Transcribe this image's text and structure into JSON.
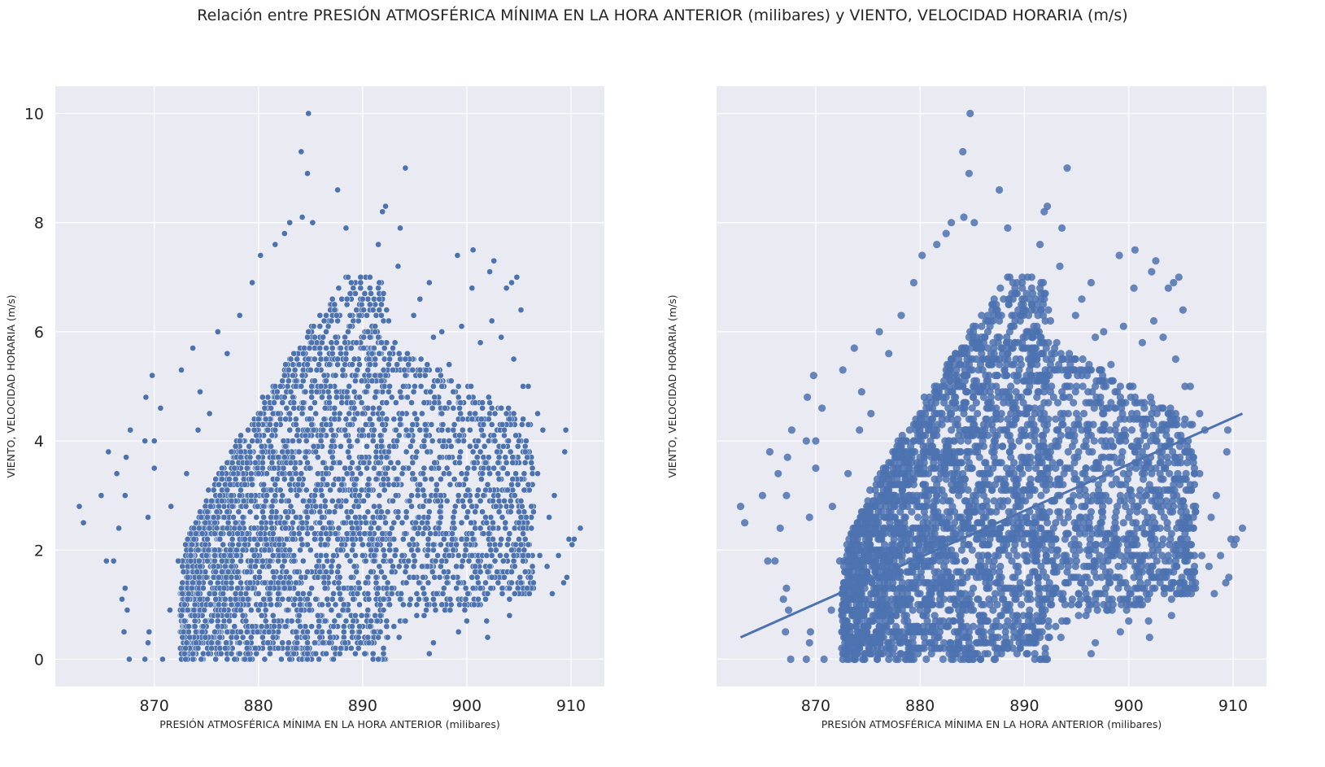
{
  "suptitle": "Relación entre PRESIÓN ATMOSFÉRICA MÍNIMA EN LA HORA ANTERIOR (milibares) y VIENTO, VELOCIDAD HORARIA (m/s)",
  "colors": {
    "axes_bg": "#eaeaf2",
    "grid": "#ffffff",
    "point": "#4c72b0",
    "line": "#4c72b0",
    "text": "#262626"
  },
  "chart_data": [
    {
      "type": "scatter",
      "xlabel": "PRESIÓN ATMOSFÉRICA MÍNIMA EN LA HORA ANTERIOR (milibares)",
      "ylabel": "VIENTO, VELOCIDAD HORARIA (m/s)",
      "xlim": [
        860.5,
        913.2
      ],
      "ylim": [
        -0.5,
        10.5
      ],
      "xticks": [
        870,
        880,
        890,
        900,
        910
      ],
      "yticks": [
        0,
        2,
        4,
        6,
        8,
        10
      ],
      "xtick_labels": [
        "870",
        "880",
        "890",
        "900",
        "910"
      ],
      "ytick_labels": [
        "0",
        "2",
        "4",
        "6",
        "8",
        "10"
      ],
      "grid": true,
      "points": [
        {
          "x": 884.8,
          "y": 10.0
        },
        {
          "x": 884.1,
          "y": 9.3
        },
        {
          "x": 884.7,
          "y": 8.9
        },
        {
          "x": 894.1,
          "y": 9.0
        },
        {
          "x": 887.6,
          "y": 8.6
        },
        {
          "x": 892.2,
          "y": 8.3
        },
        {
          "x": 891.9,
          "y": 8.2
        },
        {
          "x": 884.2,
          "y": 8.1
        },
        {
          "x": 883.0,
          "y": 8.0
        },
        {
          "x": 885.2,
          "y": 8.0
        },
        {
          "x": 893.6,
          "y": 7.9
        },
        {
          "x": 888.4,
          "y": 7.9
        },
        {
          "x": 882.5,
          "y": 7.8
        },
        {
          "x": 899.1,
          "y": 7.4
        },
        {
          "x": 900.6,
          "y": 7.5
        },
        {
          "x": 902.6,
          "y": 7.3
        },
        {
          "x": 902.2,
          "y": 7.1
        },
        {
          "x": 904.8,
          "y": 7.0
        },
        {
          "x": 904.3,
          "y": 6.9
        },
        {
          "x": 903.8,
          "y": 6.8
        },
        {
          "x": 900.5,
          "y": 6.8
        },
        {
          "x": 896.4,
          "y": 6.9
        },
        {
          "x": 895.5,
          "y": 6.6
        },
        {
          "x": 905.2,
          "y": 6.4
        },
        {
          "x": 902.4,
          "y": 6.2
        },
        {
          "x": 899.5,
          "y": 6.1
        },
        {
          "x": 897.6,
          "y": 6.0
        },
        {
          "x": 876.1,
          "y": 6.0
        },
        {
          "x": 873.7,
          "y": 5.7
        },
        {
          "x": 872.6,
          "y": 5.3
        },
        {
          "x": 869.8,
          "y": 5.2
        },
        {
          "x": 874.4,
          "y": 4.9
        },
        {
          "x": 869.2,
          "y": 4.8
        },
        {
          "x": 870.6,
          "y": 4.6
        },
        {
          "x": 867.7,
          "y": 4.2
        },
        {
          "x": 869.1,
          "y": 4.0
        },
        {
          "x": 870.0,
          "y": 4.0
        },
        {
          "x": 865.6,
          "y": 3.8
        },
        {
          "x": 867.3,
          "y": 3.7
        },
        {
          "x": 870.0,
          "y": 3.5
        },
        {
          "x": 866.4,
          "y": 3.4
        },
        {
          "x": 864.9,
          "y": 3.0
        },
        {
          "x": 867.2,
          "y": 3.0
        },
        {
          "x": 862.8,
          "y": 2.8
        },
        {
          "x": 863.2,
          "y": 2.5
        },
        {
          "x": 866.6,
          "y": 2.4
        },
        {
          "x": 869.4,
          "y": 2.6
        },
        {
          "x": 865.4,
          "y": 1.8
        },
        {
          "x": 866.1,
          "y": 1.8
        },
        {
          "x": 867.2,
          "y": 1.3
        },
        {
          "x": 866.9,
          "y": 1.1
        },
        {
          "x": 867.4,
          "y": 0.9
        },
        {
          "x": 867.1,
          "y": 0.5
        },
        {
          "x": 867.6,
          "y": 0.0
        },
        {
          "x": 869.1,
          "y": 0.0
        },
        {
          "x": 869.4,
          "y": 0.3
        },
        {
          "x": 869.5,
          "y": 0.5
        },
        {
          "x": 870.8,
          "y": 0.0
        },
        {
          "x": 909.5,
          "y": 4.2
        },
        {
          "x": 909.4,
          "y": 3.8
        },
        {
          "x": 908.4,
          "y": 3.0
        },
        {
          "x": 909.8,
          "y": 2.2
        },
        {
          "x": 910.3,
          "y": 2.2
        },
        {
          "x": 910.9,
          "y": 2.4
        },
        {
          "x": 910.1,
          "y": 2.1
        },
        {
          "x": 909.6,
          "y": 1.5
        },
        {
          "x": 909.3,
          "y": 1.4
        },
        {
          "x": 908.2,
          "y": 1.2
        },
        {
          "x": 907.7,
          "y": 1.7
        },
        {
          "x": 907.0,
          "y": 1.9
        },
        {
          "x": 906.0,
          "y": 1.2
        },
        {
          "x": 904.1,
          "y": 0.8
        },
        {
          "x": 902.0,
          "y": 0.4
        },
        {
          "x": 901.9,
          "y": 0.7
        },
        {
          "x": 900.0,
          "y": 0.7
        },
        {
          "x": 899.2,
          "y": 0.5
        },
        {
          "x": 896.4,
          "y": 0.1
        },
        {
          "x": 896.8,
          "y": 0.3
        },
        {
          "x": 900.7,
          "y": 1.0
        },
        {
          "x": 904.6,
          "y": 1.2
        },
        {
          "x": 906.2,
          "y": 2.8
        },
        {
          "x": 906.8,
          "y": 3.4
        },
        {
          "x": 907.3,
          "y": 4.2
        },
        {
          "x": 906.8,
          "y": 4.5
        },
        {
          "x": 905.4,
          "y": 5.0
        },
        {
          "x": 905.9,
          "y": 5.0
        },
        {
          "x": 904.5,
          "y": 5.5
        },
        {
          "x": 872.3,
          "y": 1.8
        },
        {
          "x": 871.6,
          "y": 2.8
        },
        {
          "x": 873.1,
          "y": 3.4
        },
        {
          "x": 874.2,
          "y": 4.2
        },
        {
          "x": 875.3,
          "y": 4.5
        },
        {
          "x": 877.0,
          "y": 5.6
        },
        {
          "x": 878.2,
          "y": 6.3
        },
        {
          "x": 879.4,
          "y": 6.9
        },
        {
          "x": 880.2,
          "y": 7.4
        },
        {
          "x": 881.6,
          "y": 7.6
        },
        {
          "x": 891.5,
          "y": 7.6
        },
        {
          "x": 893.4,
          "y": 7.2
        },
        {
          "x": 894.9,
          "y": 6.3
        },
        {
          "x": 896.8,
          "y": 5.9
        },
        {
          "x": 898.3,
          "y": 5.4
        },
        {
          "x": 901.3,
          "y": 5.8
        },
        {
          "x": 903.3,
          "y": 5.9
        },
        {
          "x": 873.4,
          "y": 0.4
        },
        {
          "x": 875.2,
          "y": 0.1
        },
        {
          "x": 871.5,
          "y": 0.9
        },
        {
          "x": 893.5,
          "y": 0.4
        },
        {
          "x": 895.2,
          "y": 1.0
        },
        {
          "x": 897.8,
          "y": 1.6
        },
        {
          "x": 899.0,
          "y": 2.1
        },
        {
          "x": 901.6,
          "y": 3.0
        },
        {
          "x": 903.0,
          "y": 3.6
        },
        {
          "x": 905.6,
          "y": 3.8
        },
        {
          "x": 907.9,
          "y": 2.6
        },
        {
          "x": 908.8,
          "y": 1.9
        }
      ],
      "dense_region": {
        "x_range": [
          872.5,
          892.5
        ],
        "y_range": [
          0,
          7.0
        ]
      },
      "side_region": {
        "x_range": [
          892.5,
          906.5
        ],
        "y_range": [
          0.5,
          6.0
        ]
      }
    },
    {
      "type": "scatter",
      "xlabel": "PRESIÓN ATMOSFÉRICA MÍNIMA EN LA HORA ANTERIOR (milibares)",
      "ylabel": "VIENTO, VELOCIDAD HORARIA (m/s)",
      "xlim": [
        860.5,
        913.2
      ],
      "ylim": [
        -0.5,
        10.5
      ],
      "xticks": [
        870,
        880,
        890,
        900,
        910
      ],
      "yticks": [
        0,
        2,
        4,
        6,
        8,
        10
      ],
      "xtick_labels": [
        "870",
        "880",
        "890",
        "900",
        "910"
      ],
      "ytick_labels": [
        "",
        "",
        "",
        "",
        "",
        ""
      ],
      "grid": true,
      "regression_line": {
        "x": [
          862.8,
          910.9
        ],
        "y": [
          0.4,
          4.5
        ]
      },
      "same_points_as_left": true
    }
  ]
}
